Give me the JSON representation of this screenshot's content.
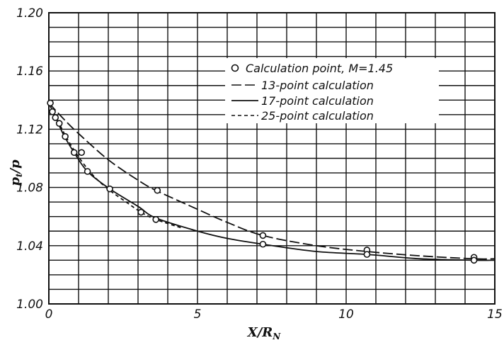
{
  "chart_data": {
    "type": "line",
    "xlabel": "X/R",
    "xlabel_sub": "N",
    "ylabel": "p",
    "ylabel_sub": "t",
    "ylabel_den": "/p",
    "xlim": [
      0,
      15
    ],
    "ylim": [
      1.0,
      1.2
    ],
    "x_ticks": [
      "0",
      "5",
      "10",
      "15"
    ],
    "x_tick_values": [
      0,
      5,
      10,
      15
    ],
    "y_ticks": [
      "1.00",
      "1.04",
      "1.08",
      "1.12",
      "1.16",
      "1.20"
    ],
    "y_tick_values": [
      1.0,
      1.04,
      1.08,
      1.12,
      1.16,
      1.2
    ],
    "grid": true,
    "legend_position": "top-right",
    "series": [
      {
        "name": "Calculation point, M=1.45",
        "style": "circles",
        "x": [
          0.05,
          0.12,
          0.22,
          0.35,
          0.55,
          0.85,
          1.1,
          1.3,
          2.05,
          3.1,
          3.6,
          3.65,
          7.2,
          7.2,
          10.7,
          10.7,
          14.3,
          14.3
        ],
        "y": [
          1.138,
          1.132,
          1.128,
          1.124,
          1.115,
          1.104,
          1.104,
          1.091,
          1.079,
          1.063,
          1.058,
          1.078,
          1.047,
          1.041,
          1.037,
          1.034,
          1.032,
          1.03
        ]
      },
      {
        "name": "13-point calculation",
        "style": "long-dash",
        "x": [
          0,
          0.5,
          1.0,
          2.0,
          3.0,
          3.6,
          5.0,
          6.0,
          7.2,
          9.0,
          10.7,
          12.5,
          14.3,
          15.0
        ],
        "y": [
          1.138,
          1.127,
          1.117,
          1.099,
          1.085,
          1.078,
          1.065,
          1.056,
          1.047,
          1.04,
          1.036,
          1.033,
          1.031,
          1.031
        ]
      },
      {
        "name": "17-point calculation",
        "style": "solid",
        "x": [
          0,
          0.25,
          0.5,
          0.85,
          1.3,
          2.05,
          3.0,
          3.6,
          5.0,
          6.0,
          7.2,
          9.0,
          10.7,
          12.5,
          14.3,
          15.0
        ],
        "y": [
          1.138,
          1.127,
          1.116,
          1.104,
          1.091,
          1.079,
          1.067,
          1.059,
          1.05,
          1.045,
          1.041,
          1.036,
          1.034,
          1.031,
          1.03,
          1.03
        ]
      },
      {
        "name": "25-point calculation",
        "style": "short-dash",
        "x": [
          0,
          0.3,
          0.6,
          1.0,
          1.5,
          2.05,
          2.6,
          3.1,
          3.6,
          4.5
        ],
        "y": [
          1.138,
          1.126,
          1.114,
          1.101,
          1.088,
          1.078,
          1.07,
          1.063,
          1.058,
          1.052
        ]
      }
    ]
  }
}
